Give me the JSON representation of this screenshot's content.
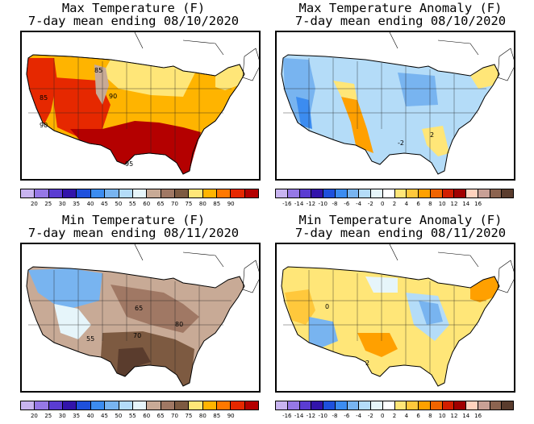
{
  "panels": [
    {
      "title_line1": "Max Temperature (F)",
      "title_line2": "7-day mean ending 08/10/2020",
      "contour_labels": [
        "85",
        "85",
        "90",
        "90",
        "95"
      ],
      "colorbar": {
        "ticks": [
          "20",
          "25",
          "30",
          "35",
          "40",
          "45",
          "50",
          "55",
          "60",
          "65",
          "70",
          "75",
          "80",
          "85",
          "90"
        ],
        "colors": [
          "#c8b4f0",
          "#9678e6",
          "#5a3cd2",
          "#3214aa",
          "#1e50dc",
          "#3c8cf0",
          "#78b4f0",
          "#b4dcf8",
          "#e6f5fa",
          "#c8aa96",
          "#a07864",
          "#7d5a41",
          "#ffe678",
          "#ffb400",
          "#ff7800",
          "#e62800",
          "#b40000"
        ]
      }
    },
    {
      "title_line1": "Max Temperature Anomaly (F)",
      "title_line2": "7-day mean ending 08/10/2020",
      "contour_labels": [
        "2",
        "-2"
      ],
      "colorbar": {
        "ticks": [
          "-16",
          "-14",
          "-12",
          "-10",
          "-8",
          "-6",
          "-4",
          "-2",
          "0",
          "2",
          "4",
          "6",
          "8",
          "10",
          "12",
          "14",
          "16"
        ],
        "colors": [
          "#c8b4f0",
          "#9678e6",
          "#5a3cd2",
          "#3214aa",
          "#1e50dc",
          "#3c8cf0",
          "#78b4f0",
          "#b4dcf8",
          "#e6f5fa",
          "#ffffff",
          "#ffe678",
          "#ffc83c",
          "#ffa000",
          "#f06400",
          "#d21e00",
          "#a00000",
          "#ffd2be",
          "#c8a096",
          "#8c6450",
          "#5a3c2d"
        ]
      }
    },
    {
      "title_line1": "Min Temperature (F)",
      "title_line2": "7-day mean ending 08/11/2020",
      "contour_labels": [
        "65",
        "55",
        "70",
        "80"
      ],
      "colorbar": {
        "ticks": [
          "20",
          "25",
          "30",
          "35",
          "40",
          "45",
          "50",
          "55",
          "60",
          "65",
          "70",
          "75",
          "80",
          "85",
          "90"
        ],
        "colors": [
          "#c8b4f0",
          "#9678e6",
          "#5a3cd2",
          "#3214aa",
          "#1e50dc",
          "#3c8cf0",
          "#78b4f0",
          "#b4dcf8",
          "#e6f5fa",
          "#c8aa96",
          "#a07864",
          "#7d5a41",
          "#ffe678",
          "#ffb400",
          "#ff7800",
          "#e62800",
          "#b40000"
        ]
      }
    },
    {
      "title_line1": "Min Temperature Anomaly (F)",
      "title_line2": "7-day mean ending 08/11/2020",
      "contour_labels": [
        "0",
        "2"
      ],
      "colorbar": {
        "ticks": [
          "-16",
          "-14",
          "-12",
          "-10",
          "-8",
          "-6",
          "-4",
          "-2",
          "0",
          "2",
          "4",
          "6",
          "8",
          "10",
          "12",
          "14",
          "16"
        ],
        "colors": [
          "#c8b4f0",
          "#9678e6",
          "#5a3cd2",
          "#3214aa",
          "#1e50dc",
          "#3c8cf0",
          "#78b4f0",
          "#b4dcf8",
          "#e6f5fa",
          "#ffffff",
          "#ffe678",
          "#ffc83c",
          "#ffa000",
          "#f06400",
          "#d21e00",
          "#a00000",
          "#ffd2be",
          "#c8a096",
          "#8c6450",
          "#5a3c2d"
        ]
      }
    }
  ],
  "fills": {
    "p1": {
      "base": "#ffb400",
      "north": "#ffe678",
      "west": "#e62800",
      "south": "#b40000",
      "cool": "#c8aa96",
      "ne": "#ffe678"
    },
    "p2": {
      "base": "#b4dcf8",
      "warm": "#ffe678",
      "hot": "#ffa000",
      "cool": "#78b4f0",
      "cold": "#3c8cf0",
      "white": "#e6f5fa"
    },
    "p3": {
      "base": "#c8aa96",
      "north": "#78b4f0",
      "light": "#e6f5fa",
      "mid": "#a07864",
      "south": "#7d5a41",
      "dark": "#5a3c2d"
    },
    "p4": {
      "base": "#ffe678",
      "warm": "#ffc83c",
      "hot": "#ffa000",
      "cool": "#b4dcf8",
      "blue": "#78b4f0",
      "white": "#e6f5fa"
    }
  }
}
